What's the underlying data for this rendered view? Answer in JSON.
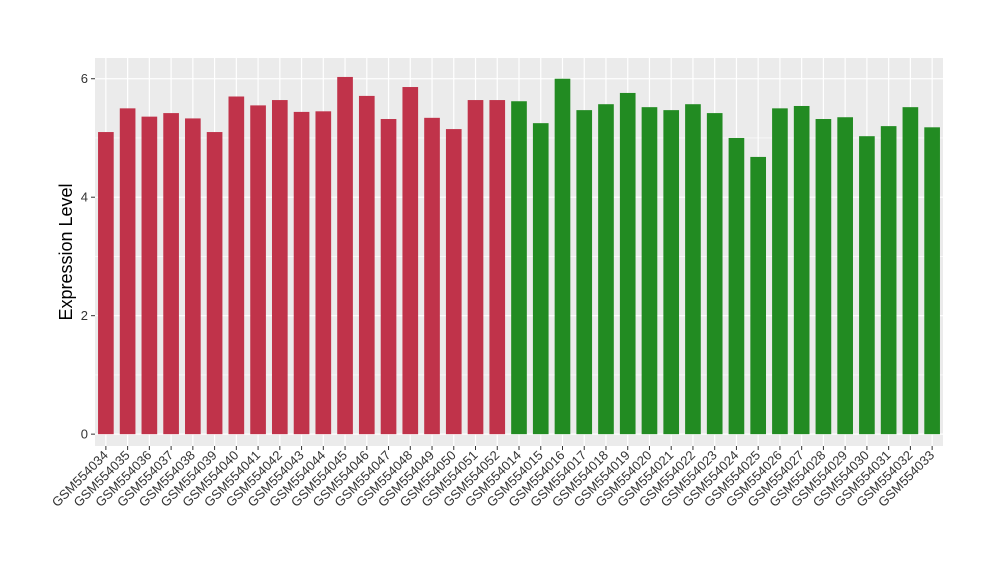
{
  "chart_data": {
    "type": "bar",
    "xlabel": "",
    "ylabel": "Expression Level",
    "ylim": [
      -0.2,
      6.35
    ],
    "yticks": [
      0,
      2,
      4,
      6
    ],
    "grid": true,
    "legend": "none",
    "background": "#ebebeb",
    "gridColor": "#ffffff",
    "groupColors": [
      "#c0334a",
      "#228b22"
    ],
    "categories": [
      "GSM554034",
      "GSM554035",
      "GSM554036",
      "GSM554037",
      "GSM554038",
      "GSM554039",
      "GSM554040",
      "GSM554041",
      "GSM554042",
      "GSM554043",
      "GSM554044",
      "GSM554045",
      "GSM554046",
      "GSM554047",
      "GSM554048",
      "GSM554049",
      "GSM554050",
      "GSM554051",
      "GSM554052",
      "GSM554014",
      "GSM554015",
      "GSM554016",
      "GSM554017",
      "GSM554018",
      "GSM554019",
      "GSM554020",
      "GSM554021",
      "GSM554022",
      "GSM554023",
      "GSM554024",
      "GSM554025",
      "GSM554026",
      "GSM554027",
      "GSM554028",
      "GSM554029",
      "GSM554030",
      "GSM554031",
      "GSM554032",
      "GSM554033"
    ],
    "values": [
      5.1,
      5.5,
      5.36,
      5.42,
      5.33,
      5.1,
      5.7,
      5.55,
      5.64,
      5.44,
      5.45,
      6.03,
      5.71,
      5.32,
      5.86,
      5.34,
      5.15,
      5.64,
      5.64,
      5.62,
      5.25,
      6.0,
      5.47,
      5.57,
      5.76,
      5.52,
      5.47,
      5.57,
      5.42,
      5.0,
      4.68,
      5.5,
      5.54,
      5.32,
      5.35,
      5.03,
      5.2,
      5.52,
      5.18
    ],
    "groups": [
      0,
      0,
      0,
      0,
      0,
      0,
      0,
      0,
      0,
      0,
      0,
      0,
      0,
      0,
      0,
      0,
      0,
      0,
      0,
      1,
      1,
      1,
      1,
      1,
      1,
      1,
      1,
      1,
      1,
      1,
      1,
      1,
      1,
      1,
      1,
      1,
      1,
      1,
      1
    ]
  }
}
